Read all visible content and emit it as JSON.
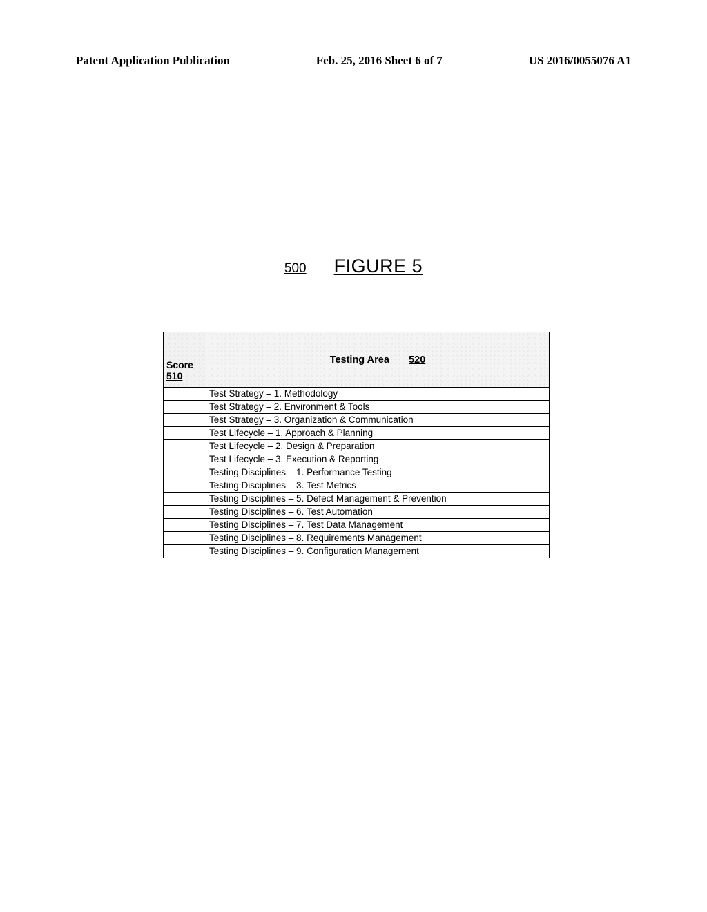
{
  "header": {
    "left": "Patent Application Publication",
    "center": "Feb. 25, 2016  Sheet 6 of 7",
    "right": "US 2016/0055076 A1"
  },
  "figure": {
    "ref_num": "500",
    "title": "FIGURE 5"
  },
  "table": {
    "score_column_header_line1": "Score",
    "score_column_header_line2": "510",
    "area_column_header_label": "Testing Area",
    "area_column_header_ref": "520",
    "rows": [
      "Test Strategy – 1.  Methodology",
      "Test Strategy – 2.  Environment & Tools",
      "Test Strategy – 3.  Organization & Communication",
      "Test Lifecycle – 1.  Approach &  Planning",
      "Test Lifecycle – 2.  Design & Preparation",
      "Test Lifecycle – 3.   Execution & Reporting",
      "Testing Disciplines – 1.  Performance Testing",
      "Testing Disciplines – 3.  Test Metrics",
      "Testing Disciplines – 5.  Defect Management & Prevention",
      "Testing Disciplines – 6.  Test Automation",
      "Testing Disciplines – 7.  Test Data Management",
      "Testing Disciplines – 8.  Requirements Management",
      "Testing Disciplines – 9.  Configuration Management"
    ]
  },
  "style": {
    "page_bg": "#ffffff",
    "border_color": "#000000",
    "header_font_size_pt": 13,
    "figure_title_font_size_pt": 20,
    "table_font_size_pt": 10,
    "header_cell_bg": "#f2f2f2"
  }
}
